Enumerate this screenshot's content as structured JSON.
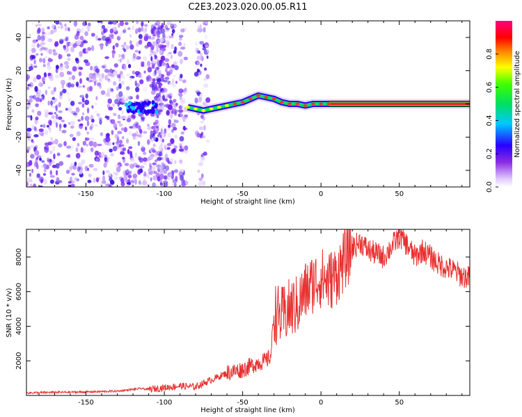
{
  "title": "C2E3.2023.020.00.05.R11",
  "colors": {
    "snr_line": "#e83030",
    "scatter": "#7b2cf5",
    "frame": "#000000"
  },
  "chart_data": [
    {
      "type": "heatmap",
      "ylabel": "Frequency (Hz)",
      "xlabel": "Height of straight line (km)",
      "xlim": [
        -188,
        95
      ],
      "ylim": [
        -50,
        50
      ],
      "x_ticks": [
        -150,
        -100,
        -50,
        0,
        50
      ],
      "x_tick_labels": [
        "-150",
        "-100",
        "-50",
        "0",
        "50"
      ],
      "y_ticks": [
        -40,
        -20,
        0,
        20,
        40
      ],
      "y_tick_labels": [
        "-40",
        "-20",
        "0",
        "20",
        "40"
      ],
      "colorbar": {
        "label": "Normalized spectral amplitude",
        "ticks": [
          0.0,
          0.2,
          0.4,
          0.6,
          0.8
        ],
        "tick_labels": [
          "0.0",
          "0.2",
          "0.4",
          "0.6",
          "0.8"
        ],
        "range": [
          0,
          1
        ],
        "colormap": "rainbow (white-purple-blue-cyan-green-yellow-orange-red-magenta)"
      },
      "ridge": {
        "description": "Doppler frequency ridge",
        "x": [
          -85,
          -80,
          -75,
          -70,
          -65,
          -60,
          -55,
          -50,
          -45,
          -40,
          -35,
          -30,
          -25,
          -20,
          -15,
          -10,
          -5,
          0,
          5,
          10,
          20,
          30,
          40,
          50,
          60,
          70,
          80,
          90,
          95
        ],
        "y": [
          -2,
          -3,
          -4,
          -3,
          -2,
          -1,
          0,
          1,
          3,
          5,
          4,
          3,
          1,
          0,
          0,
          -1,
          0,
          0,
          0,
          0,
          0,
          0,
          0,
          0,
          0,
          0,
          0,
          0,
          0
        ]
      },
      "dense_cluster": {
        "x_range": [
          -125,
          -105
        ],
        "y": -2
      }
    },
    {
      "type": "line",
      "ylabel": "SNR (10 * v/v)",
      "xlabel": "Height of straight line (km)",
      "xlim": [
        -188,
        95
      ],
      "ylim": [
        0,
        9600
      ],
      "x_ticks": [
        -150,
        -100,
        -50,
        0,
        50
      ],
      "x_tick_labels": [
        "-150",
        "-100",
        "-50",
        "0",
        "50"
      ],
      "y_ticks": [
        2000,
        4000,
        6000,
        8000
      ],
      "y_tick_labels": [
        "2000",
        "4000",
        "6000",
        "8000"
      ],
      "series": [
        {
          "x": [
            -188,
            -170,
            -150,
            -130,
            -115,
            -110,
            -100,
            -90,
            -80,
            -70,
            -60,
            -50,
            -45,
            -40,
            -35,
            -32,
            -30,
            -25,
            -20,
            -15,
            -10,
            -5,
            0,
            5,
            10,
            15,
            20,
            25,
            30,
            35,
            40,
            45,
            50,
            55,
            60,
            65,
            70,
            75,
            80,
            85,
            90,
            95
          ],
          "y": [
            150,
            180,
            200,
            250,
            400,
            350,
            450,
            550,
            500,
            900,
            1300,
            1500,
            1700,
            1900,
            2000,
            2300,
            4800,
            4500,
            5000,
            5200,
            6000,
            6500,
            6800,
            6600,
            7000,
            7800,
            8500,
            8900,
            8400,
            8200,
            8000,
            8600,
            9200,
            8700,
            8000,
            8400,
            8000,
            7600,
            7400,
            7200,
            6900,
            6800
          ]
        }
      ]
    }
  ]
}
